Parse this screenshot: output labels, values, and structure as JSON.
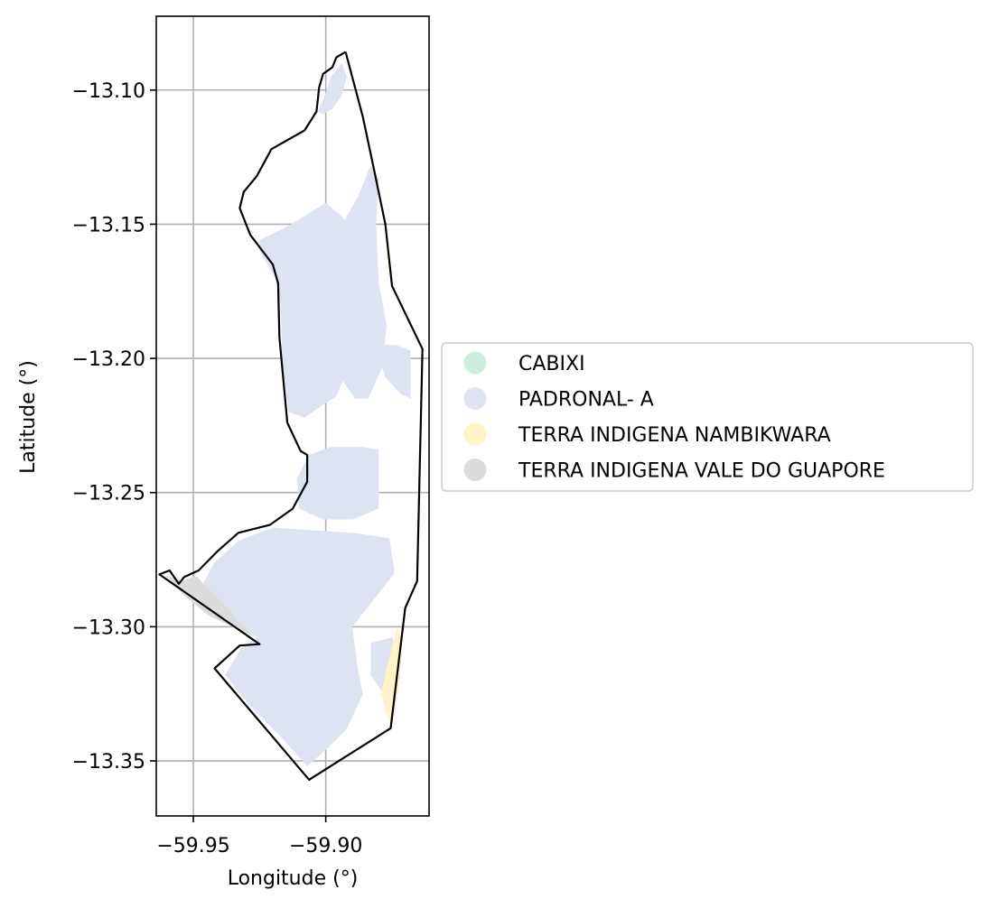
{
  "chart_data": {
    "type": "map",
    "xlabel": "Longitude (°)",
    "ylabel": "Latitude (°)",
    "xlim": [
      -59.964,
      -59.861
    ],
    "ylim": [
      -13.3705,
      -13.0725
    ],
    "grid": true,
    "x_ticks": [
      {
        "value": -59.95,
        "label": "−59.95"
      },
      {
        "value": -59.9,
        "label": "−59.90"
      }
    ],
    "y_ticks": [
      {
        "value": -13.1,
        "label": "−13.10"
      },
      {
        "value": -13.15,
        "label": "−13.15"
      },
      {
        "value": -13.2,
        "label": "−13.20"
      },
      {
        "value": -13.25,
        "label": "−13.25"
      },
      {
        "value": -13.3,
        "label": "−13.30"
      },
      {
        "value": -13.35,
        "label": "−13.35"
      }
    ],
    "legend_position": "center-left outside, to the right of the map",
    "legend": [
      {
        "label": "CABIXI",
        "color": "#cdeedd"
      },
      {
        "label": "PADRONAL- A",
        "color": "#dde3f1"
      },
      {
        "label": "TERRA INDIGENA NAMBIKWARA",
        "color": "#fff3c7"
      },
      {
        "label": "TERRA INDIGENA VALE DO GUAPORE",
        "color": "#dcdcdc"
      }
    ],
    "boundary": [
      [
        -59.8925,
        -13.0858
      ],
      [
        -59.896,
        -13.0878
      ],
      [
        -59.8975,
        -13.0915
      ],
      [
        -59.901,
        -13.094
      ],
      [
        -59.9025,
        -13.099
      ],
      [
        -59.9035,
        -13.108
      ],
      [
        -59.908,
        -13.115
      ],
      [
        -59.9205,
        -13.122
      ],
      [
        -59.926,
        -13.132
      ],
      [
        -59.931,
        -13.138
      ],
      [
        -59.9325,
        -13.144
      ],
      [
        -59.9285,
        -13.154
      ],
      [
        -59.92,
        -13.165
      ],
      [
        -59.918,
        -13.172
      ],
      [
        -59.9175,
        -13.192
      ],
      [
        -59.9145,
        -13.224
      ],
      [
        -59.9095,
        -13.2345
      ],
      [
        -59.907,
        -13.236
      ],
      [
        -59.907,
        -13.246
      ],
      [
        -59.9125,
        -13.256
      ],
      [
        -59.921,
        -13.262
      ],
      [
        -59.933,
        -13.265
      ],
      [
        -59.941,
        -13.272
      ],
      [
        -59.948,
        -13.279
      ],
      [
        -59.9535,
        -13.2815
      ],
      [
        -59.9555,
        -13.284
      ],
      [
        -59.959,
        -13.279
      ],
      [
        -59.9628,
        -13.2805
      ],
      [
        -59.925,
        -13.3065
      ],
      [
        -59.9325,
        -13.307
      ],
      [
        -59.942,
        -13.3155
      ],
      [
        -59.9063,
        -13.357
      ],
      [
        -59.8755,
        -13.3378
      ],
      [
        -59.87,
        -13.293
      ],
      [
        -59.8655,
        -13.283
      ],
      [
        -59.8635,
        -13.1965
      ],
      [
        -59.875,
        -13.173
      ],
      [
        -59.8775,
        -13.15
      ],
      [
        -59.8817,
        -13.13
      ],
      [
        -59.886,
        -13.11
      ],
      [
        -59.8925,
        -13.0858
      ]
    ],
    "regions": [
      {
        "label": "PADRONAL- A",
        "polygon": [
          [
            -59.894,
            -13.09
          ],
          [
            -59.898,
            -13.095
          ],
          [
            -59.9,
            -13.101
          ],
          [
            -59.903,
            -13.108
          ],
          [
            -59.901,
            -13.109
          ],
          [
            -59.8975,
            -13.107
          ],
          [
            -59.894,
            -13.102
          ],
          [
            -59.892,
            -13.095
          ]
        ]
      },
      {
        "label": "PADRONAL- A",
        "polygon": [
          [
            -59.883,
            -13.128
          ],
          [
            -59.888,
            -13.14
          ],
          [
            -59.892,
            -13.147
          ],
          [
            -59.898,
            -13.16
          ],
          [
            -59.9,
            -13.17
          ],
          [
            -59.896,
            -13.183
          ],
          [
            -59.893,
            -13.195
          ],
          [
            -59.896,
            -13.205
          ],
          [
            -59.889,
            -13.215
          ],
          [
            -59.884,
            -13.215
          ],
          [
            -59.879,
            -13.204
          ],
          [
            -59.877,
            -13.188
          ],
          [
            -59.88,
            -13.172
          ],
          [
            -59.881,
            -13.15
          ],
          [
            -59.88,
            -13.133
          ]
        ]
      },
      {
        "label": "PADRONAL- A",
        "polygon": [
          [
            -59.925,
            -13.156
          ],
          [
            -59.913,
            -13.15
          ],
          [
            -59.9,
            -13.142
          ],
          [
            -59.893,
            -13.148
          ],
          [
            -59.889,
            -13.158
          ],
          [
            -59.887,
            -13.172
          ],
          [
            -59.891,
            -13.185
          ],
          [
            -59.889,
            -13.198
          ],
          [
            -59.896,
            -13.214
          ],
          [
            -59.908,
            -13.222
          ],
          [
            -59.914,
            -13.22
          ],
          [
            -59.9165,
            -13.2
          ],
          [
            -59.917,
            -13.18
          ],
          [
            -59.919,
            -13.17
          ],
          [
            -59.925,
            -13.16
          ]
        ]
      },
      {
        "label": "PADRONAL- A",
        "polygon": [
          [
            -59.879,
            -13.195
          ],
          [
            -59.8735,
            -13.195
          ],
          [
            -59.868,
            -13.197
          ],
          [
            -59.868,
            -13.215
          ],
          [
            -59.872,
            -13.213
          ],
          [
            -59.8775,
            -13.207
          ],
          [
            -59.88,
            -13.2
          ]
        ]
      },
      {
        "label": "PADRONAL- A",
        "polygon": [
          [
            -59.9065,
            -13.236
          ],
          [
            -59.898,
            -13.233
          ],
          [
            -59.886,
            -13.233
          ],
          [
            -59.88,
            -13.234
          ],
          [
            -59.88,
            -13.256
          ],
          [
            -59.89,
            -13.26
          ],
          [
            -59.901,
            -13.26
          ],
          [
            -59.91,
            -13.256
          ],
          [
            -59.911,
            -13.245
          ]
        ]
      },
      {
        "label": "PADRONAL- A",
        "polygon": [
          [
            -59.92,
            -13.263
          ],
          [
            -59.906,
            -13.264
          ],
          [
            -59.89,
            -13.265
          ],
          [
            -59.876,
            -13.267
          ],
          [
            -59.874,
            -13.28
          ],
          [
            -59.882,
            -13.29
          ],
          [
            -59.89,
            -13.3
          ],
          [
            -59.888,
            -13.315
          ],
          [
            -59.886,
            -13.325
          ],
          [
            -59.892,
            -13.338
          ],
          [
            -59.899,
            -13.345
          ],
          [
            -59.907,
            -13.352
          ],
          [
            -59.918,
            -13.34
          ],
          [
            -59.93,
            -13.328
          ],
          [
            -59.938,
            -13.318
          ],
          [
            -59.932,
            -13.308
          ],
          [
            -59.926,
            -13.304
          ],
          [
            -59.939,
            -13.294
          ],
          [
            -59.948,
            -13.287
          ],
          [
            -59.942,
            -13.276
          ],
          [
            -59.933,
            -13.268
          ]
        ]
      },
      {
        "label": "PADRONAL- A",
        "polygon": [
          [
            -59.883,
            -13.306
          ],
          [
            -59.875,
            -13.304
          ],
          [
            -59.872,
            -13.31
          ],
          [
            -59.879,
            -13.324
          ],
          [
            -59.883,
            -13.318
          ]
        ]
      },
      {
        "label": "TERRA INDIGENA NAMBIKWARA",
        "polygon": [
          [
            -59.873,
            -13.3
          ],
          [
            -59.877,
            -13.315
          ],
          [
            -59.879,
            -13.325
          ],
          [
            -59.877,
            -13.333
          ],
          [
            -59.8745,
            -13.336
          ],
          [
            -59.872,
            -13.32
          ],
          [
            -59.871,
            -13.305
          ]
        ]
      },
      {
        "label": "TERRA INDIGENA VALE DO GUAPORE",
        "polygon": [
          [
            -59.96,
            -13.281
          ],
          [
            -59.9545,
            -13.283
          ],
          [
            -59.949,
            -13.281
          ],
          [
            -59.94,
            -13.29
          ],
          [
            -59.933,
            -13.298
          ],
          [
            -59.9265,
            -13.304
          ],
          [
            -59.933,
            -13.301
          ],
          [
            -59.944,
            -13.296
          ],
          [
            -59.954,
            -13.288
          ]
        ]
      }
    ]
  }
}
